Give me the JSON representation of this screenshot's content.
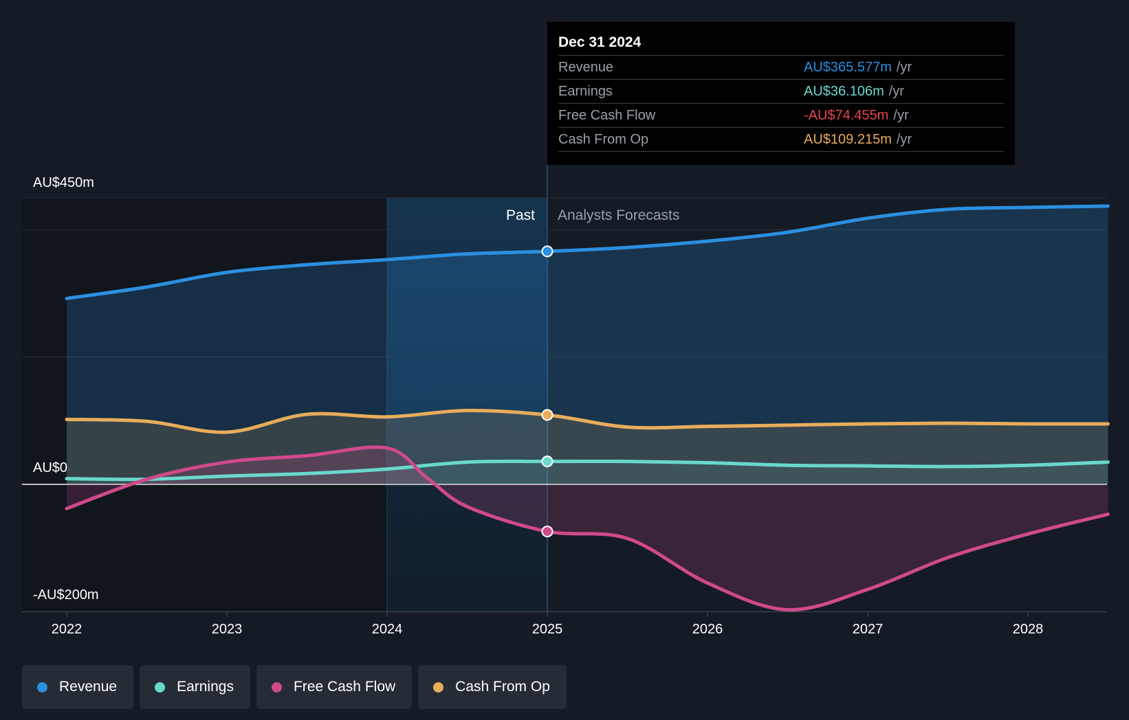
{
  "chart_data": {
    "type": "area",
    "y_axis": {
      "top_label": "AU$450m",
      "zero_label": "AU$0",
      "bottom_label": "-AU$200m",
      "ylim": [
        -200,
        450
      ]
    },
    "x_ticks": [
      "2022",
      "2023",
      "2024",
      "2025",
      "2026",
      "2027",
      "2028"
    ],
    "xlim": [
      2021.7,
      2028.5
    ],
    "split": {
      "past_label": "Past",
      "forecast_label": "Analysts Forecasts",
      "x": 2025.0,
      "highlight_start": 2024.0
    },
    "series": [
      {
        "name": "Revenue",
        "color": "#2b8fe0",
        "points": [
          [
            2022.0,
            292
          ],
          [
            2022.5,
            310
          ],
          [
            2023.0,
            333
          ],
          [
            2023.5,
            345
          ],
          [
            2024.0,
            353
          ],
          [
            2024.5,
            362
          ],
          [
            2025.0,
            366
          ],
          [
            2025.5,
            372
          ],
          [
            2026.0,
            382
          ],
          [
            2026.5,
            396
          ],
          [
            2027.0,
            418
          ],
          [
            2027.5,
            432
          ],
          [
            2028.0,
            435
          ],
          [
            2028.5,
            437
          ]
        ]
      },
      {
        "name": "Cash From Op",
        "color": "#e8ac5a",
        "points": [
          [
            2022.0,
            102
          ],
          [
            2022.5,
            99
          ],
          [
            2023.0,
            82
          ],
          [
            2023.5,
            110
          ],
          [
            2024.0,
            106
          ],
          [
            2024.5,
            116
          ],
          [
            2025.0,
            109
          ],
          [
            2025.5,
            90
          ],
          [
            2026.0,
            91
          ],
          [
            2026.5,
            93
          ],
          [
            2027.0,
            95
          ],
          [
            2027.5,
            96
          ],
          [
            2028.0,
            95
          ],
          [
            2028.5,
            95
          ]
        ]
      },
      {
        "name": "Earnings",
        "color": "#6ad8cc",
        "points": [
          [
            2022.0,
            9
          ],
          [
            2022.5,
            8
          ],
          [
            2023.0,
            13
          ],
          [
            2023.5,
            17
          ],
          [
            2024.0,
            24
          ],
          [
            2024.5,
            35
          ],
          [
            2025.0,
            36
          ],
          [
            2025.5,
            36
          ],
          [
            2026.0,
            34
          ],
          [
            2026.5,
            30
          ],
          [
            2027.0,
            29
          ],
          [
            2027.5,
            28
          ],
          [
            2028.0,
            30
          ],
          [
            2028.5,
            35
          ]
        ]
      },
      {
        "name": "Free Cash Flow",
        "color": "#cf4a8a",
        "points": [
          [
            2022.0,
            -38
          ],
          [
            2022.5,
            8
          ],
          [
            2023.0,
            35
          ],
          [
            2023.5,
            45
          ],
          [
            2024.0,
            57
          ],
          [
            2024.25,
            10
          ],
          [
            2024.5,
            -35
          ],
          [
            2025.0,
            -74
          ],
          [
            2025.5,
            -85
          ],
          [
            2026.0,
            -155
          ],
          [
            2026.5,
            -197
          ],
          [
            2027.0,
            -165
          ],
          [
            2027.5,
            -115
          ],
          [
            2028.0,
            -78
          ],
          [
            2028.5,
            -47
          ]
        ]
      }
    ],
    "tooltip": {
      "date": "Dec 31 2024",
      "unit": "/yr",
      "rows": [
        {
          "label": "Revenue",
          "value": "AU$365.577m",
          "color": "#2b8fe0"
        },
        {
          "label": "Earnings",
          "value": "AU$36.106m",
          "color": "#6ad8cc"
        },
        {
          "label": "Free Cash Flow",
          "value": "-AU$74.455m",
          "color": "#e8434b"
        },
        {
          "label": "Cash From Op",
          "value": "AU$109.215m",
          "color": "#e8ac5a"
        }
      ]
    },
    "legend": [
      {
        "name": "Revenue",
        "color": "#2b8fe0"
      },
      {
        "name": "Earnings",
        "color": "#6ad8cc"
      },
      {
        "name": "Free Cash Flow",
        "color": "#cf4a8a"
      },
      {
        "name": "Cash From Op",
        "color": "#e8ac5a"
      }
    ]
  }
}
